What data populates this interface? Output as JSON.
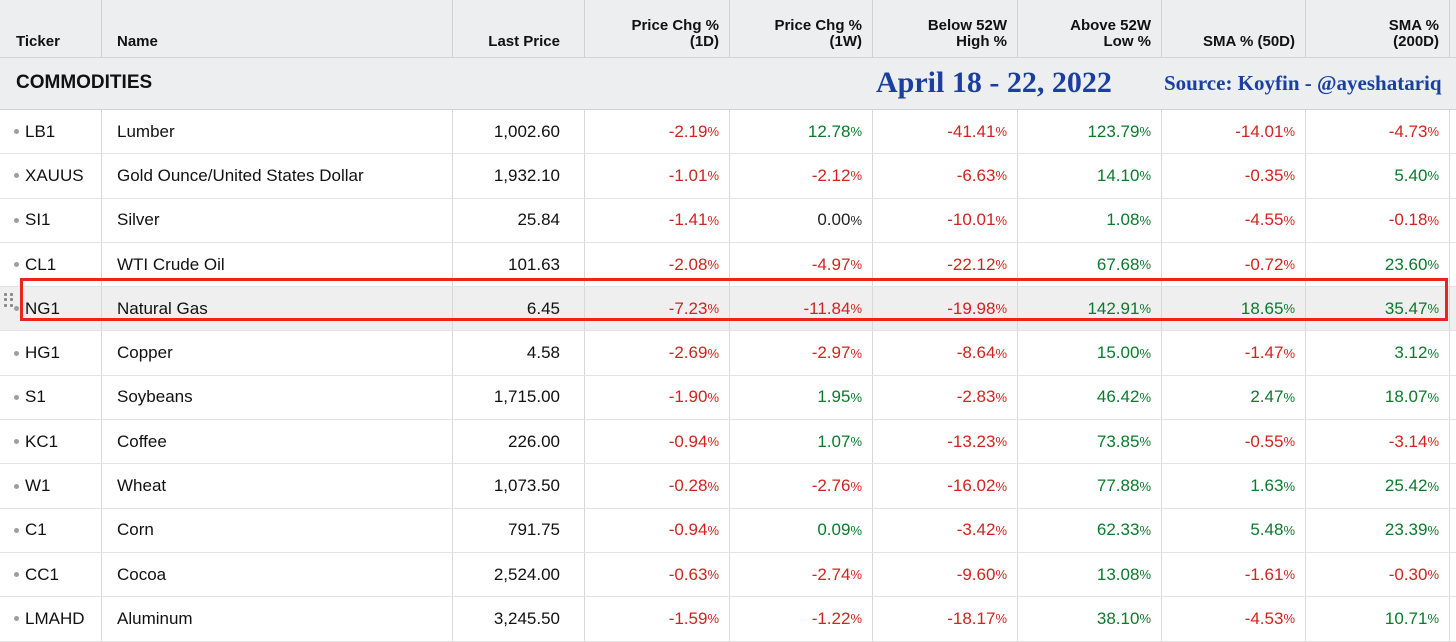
{
  "columns": [
    {
      "label": "Ticker"
    },
    {
      "label": "Name"
    },
    {
      "label": "Last Price"
    },
    {
      "label": "Price Chg %\n(1D)"
    },
    {
      "label": "Price Chg %\n(1W)"
    },
    {
      "label": "Below 52W\nHigh %"
    },
    {
      "label": "Above 52W\nLow %"
    },
    {
      "label": "SMA % (50D)"
    },
    {
      "label": "SMA %\n(200D)"
    }
  ],
  "section": {
    "title": "COMMODITIES",
    "date_note": "April 18 - 22, 2022",
    "source_note": "Source: Koyfin - @ayeshatariq"
  },
  "percent_suffix": "%",
  "colors": {
    "negative": "#d1241f",
    "positive": "#0b7a2c",
    "highlight_border": "#e8261c",
    "annotation": "#1a3fa0"
  },
  "highlighted_ticker": "NG1",
  "rows": [
    {
      "ticker": "LB1",
      "name": "Lumber",
      "last": "1,002.60",
      "chg1d": "-2.19",
      "chg1w": "12.78",
      "below52": "-41.41",
      "above52": "123.79",
      "sma50": "-14.01",
      "sma200": "-4.73"
    },
    {
      "ticker": "XAUUS",
      "name": "Gold Ounce/United States Dollar",
      "last": "1,932.10",
      "chg1d": "-1.01",
      "chg1w": "-2.12",
      "below52": "-6.63",
      "above52": "14.10",
      "sma50": "-0.35",
      "sma200": "5.40"
    },
    {
      "ticker": "SI1",
      "name": "Silver",
      "last": "25.84",
      "chg1d": "-1.41",
      "chg1w": "0.00",
      "below52": "-10.01",
      "above52": "1.08",
      "sma50": "-4.55",
      "sma200": "-0.18"
    },
    {
      "ticker": "CL1",
      "name": "WTI Crude Oil",
      "last": "101.63",
      "chg1d": "-2.08",
      "chg1w": "-4.97",
      "below52": "-22.12",
      "above52": "67.68",
      "sma50": "-0.72",
      "sma200": "23.60"
    },
    {
      "ticker": "NG1",
      "name": "Natural Gas",
      "last": "6.45",
      "chg1d": "-7.23",
      "chg1w": "-11.84",
      "below52": "-19.98",
      "above52": "142.91",
      "sma50": "18.65",
      "sma200": "35.47"
    },
    {
      "ticker": "HG1",
      "name": "Copper",
      "last": "4.58",
      "chg1d": "-2.69",
      "chg1w": "-2.97",
      "below52": "-8.64",
      "above52": "15.00",
      "sma50": "-1.47",
      "sma200": "3.12"
    },
    {
      "ticker": "S1",
      "name": "Soybeans",
      "last": "1,715.00",
      "chg1d": "-1.90",
      "chg1w": "1.95",
      "below52": "-2.83",
      "above52": "46.42",
      "sma50": "2.47",
      "sma200": "18.07"
    },
    {
      "ticker": "KC1",
      "name": "Coffee",
      "last": "226.00",
      "chg1d": "-0.94",
      "chg1w": "1.07",
      "below52": "-13.23",
      "above52": "73.85",
      "sma50": "-0.55",
      "sma200": "-3.14"
    },
    {
      "ticker": "W1",
      "name": "Wheat",
      "last": "1,073.50",
      "chg1d": "-0.28",
      "chg1w": "-2.76",
      "below52": "-16.02",
      "above52": "77.88",
      "sma50": "1.63",
      "sma200": "25.42"
    },
    {
      "ticker": "C1",
      "name": "Corn",
      "last": "791.75",
      "chg1d": "-0.94",
      "chg1w": "0.09",
      "below52": "-3.42",
      "above52": "62.33",
      "sma50": "5.48",
      "sma200": "23.39"
    },
    {
      "ticker": "CC1",
      "name": "Cocoa",
      "last": "2,524.00",
      "chg1d": "-0.63",
      "chg1w": "-2.74",
      "below52": "-9.60",
      "above52": "13.08",
      "sma50": "-1.61",
      "sma200": "-0.30"
    },
    {
      "ticker": "LMAHD",
      "name": "Aluminum",
      "last": "3,245.50",
      "chg1d": "-1.59",
      "chg1w": "-1.22",
      "below52": "-18.17",
      "above52": "38.10",
      "sma50": "-4.53",
      "sma200": "10.71"
    }
  ]
}
